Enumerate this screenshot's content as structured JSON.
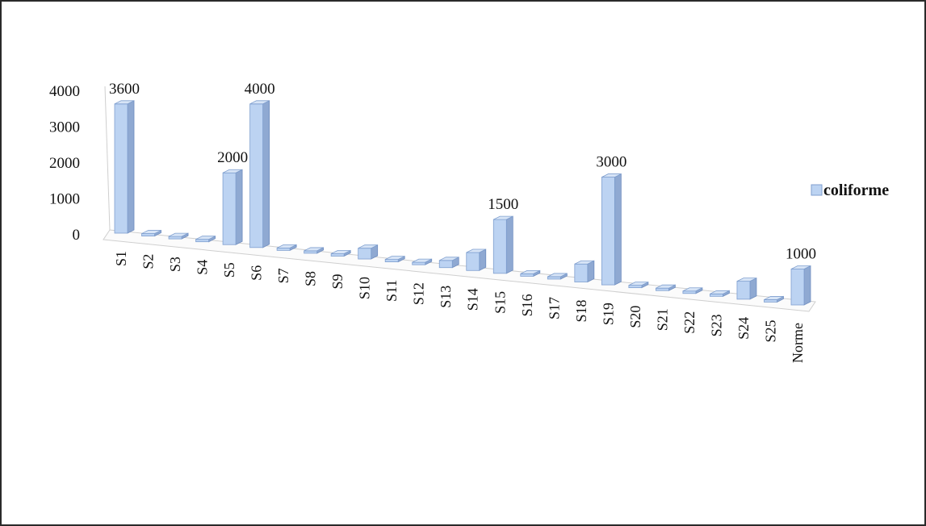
{
  "chart_data": {
    "type": "bar",
    "style": "3d-column",
    "categories": [
      "S1",
      "S2",
      "S3",
      "S4",
      "S5",
      "S6",
      "S7",
      "S8",
      "S9",
      "S10",
      "S11",
      "S12",
      "S13",
      "S14",
      "S15",
      "S16",
      "S17",
      "S18",
      "S19",
      "S20",
      "S21",
      "S22",
      "S23",
      "S24",
      "S25",
      "Norme"
    ],
    "series": [
      {
        "name": "coliforme",
        "values": [
          3600,
          0,
          50,
          0,
          2000,
          4000,
          0,
          0,
          0,
          300,
          0,
          0,
          200,
          500,
          1500,
          0,
          0,
          500,
          3000,
          0,
          0,
          0,
          0,
          500,
          0,
          1000
        ],
        "color": "#bcd3f2"
      }
    ],
    "data_labels": {
      "S1": "3600",
      "S5": "2000",
      "S6": "4000",
      "S15": "1500",
      "S19": "3000",
      "Norme": "1000"
    },
    "yticks": [
      "0",
      "1000",
      "2000",
      "3000",
      "4000"
    ],
    "ylim": [
      0,
      4000
    ],
    "legend": {
      "position": "right",
      "entries": [
        "coliforme"
      ]
    },
    "grid": false,
    "title": "",
    "xlabel": "",
    "ylabel": ""
  }
}
